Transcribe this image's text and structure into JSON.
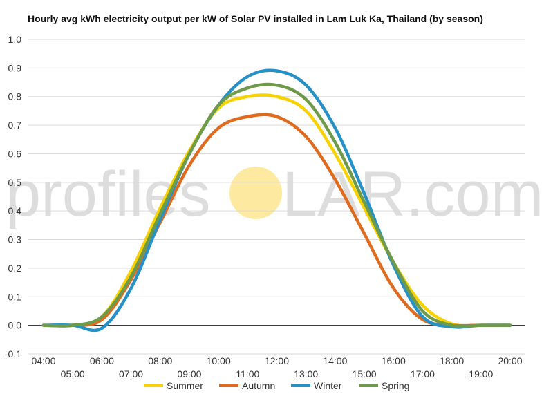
{
  "chart_data": {
    "type": "line",
    "title": "Hourly avg kWh electricity output per kW of Solar PV installed in Lam Luk Ka, Thailand (by season)",
    "watermark": {
      "text_left": "profiles",
      "text_right": "LAR.com",
      "sun_color": "#fde9a0"
    },
    "x": [
      "04:00",
      "05:00",
      "06:00",
      "07:00",
      "08:00",
      "09:00",
      "10:00",
      "11:00",
      "12:00",
      "13:00",
      "14:00",
      "15:00",
      "16:00",
      "17:00",
      "18:00",
      "19:00",
      "20:00"
    ],
    "yticks": [
      "1.0",
      "0.9",
      "0.8",
      "0.7",
      "0.6",
      "0.5",
      "0.4",
      "0.3",
      "0.2",
      "0.1",
      "0.0",
      "-0.1"
    ],
    "ylim": [
      -0.1,
      1.0
    ],
    "grid": true,
    "legend_position": "bottom",
    "series": [
      {
        "name": "Summer",
        "color": "#f7d200",
        "values": [
          0,
          0,
          0.03,
          0.19,
          0.41,
          0.61,
          0.76,
          0.8,
          0.8,
          0.75,
          0.6,
          0.41,
          0.22,
          0.07,
          0.005,
          0,
          0
        ]
      },
      {
        "name": "Autumn",
        "color": "#e06b1e",
        "values": [
          0,
          0,
          0.02,
          0.16,
          0.36,
          0.56,
          0.69,
          0.73,
          0.73,
          0.66,
          0.51,
          0.32,
          0.13,
          0.02,
          0,
          0,
          0
        ]
      },
      {
        "name": "Winter",
        "color": "#2591c7",
        "values": [
          0,
          0,
          -0.01,
          0.13,
          0.37,
          0.6,
          0.77,
          0.87,
          0.89,
          0.84,
          0.69,
          0.46,
          0.21,
          0.03,
          -0.005,
          0,
          0
        ]
      },
      {
        "name": "Spring",
        "color": "#6e9b49",
        "values": [
          0,
          0,
          0.03,
          0.17,
          0.39,
          0.6,
          0.77,
          0.83,
          0.84,
          0.79,
          0.64,
          0.43,
          0.22,
          0.05,
          0,
          0,
          0
        ]
      }
    ]
  }
}
